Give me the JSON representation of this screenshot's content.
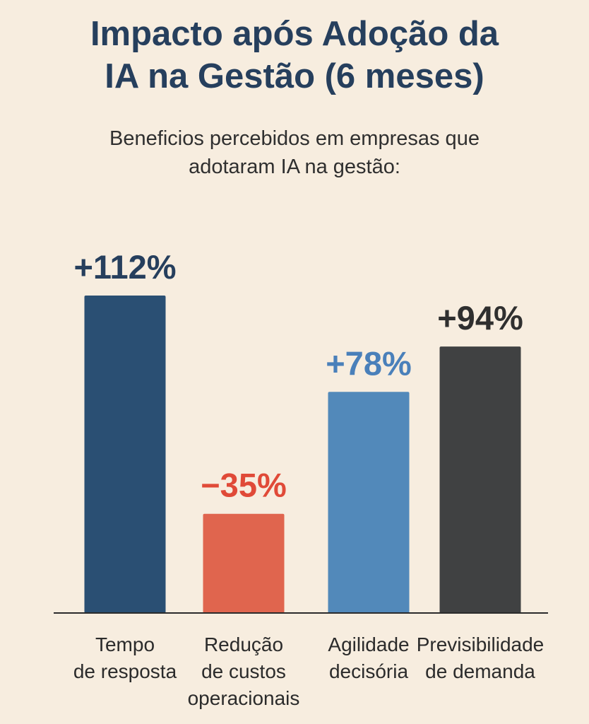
{
  "chart_data": {
    "type": "bar",
    "title": "Impacto após Adoção da IA na Gestão (6 meses)",
    "title_lines": [
      "Impacto após Adoção da",
      "IA na Gestão (6 meses)"
    ],
    "subtitle": "Beneficios percebidos em empresas que adotaram IA na gestão:",
    "subtitle_lines": [
      "Beneficios percebidos em empresas que",
      "adotaram IA na gestão:"
    ],
    "categories": [
      [
        "Tempo",
        "de resposta"
      ],
      [
        "Redução",
        "de custos",
        "operacionais"
      ],
      [
        "Agilidade",
        "decisória"
      ],
      [
        "Previsibilidade",
        "de demanda"
      ]
    ],
    "values": [
      112,
      -35,
      78,
      94
    ],
    "value_labels": [
      "+112%",
      "−35%",
      "+78%",
      "+94%"
    ],
    "bar_colors": [
      "#2a4f73",
      "#e0654e",
      "#5289ba",
      "#404142"
    ],
    "label_colors": [
      "#263f5d",
      "#e04a38",
      "#4a80ba",
      "#2f2f2f"
    ],
    "ylim": [
      0,
      112
    ],
    "grid": false,
    "legend": "none"
  }
}
